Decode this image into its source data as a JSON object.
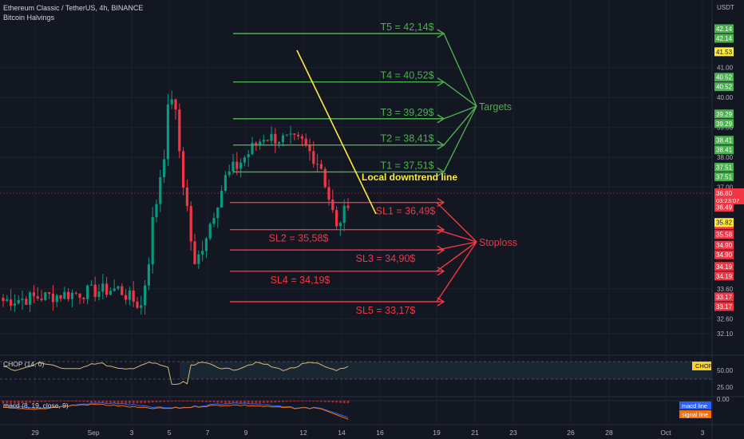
{
  "header": {
    "symbol_line": "Ethereum Classic / TetherUS, 4h, BINANCE",
    "indicator_line": "Bitcoin Halvings",
    "currency": "USDT"
  },
  "colors": {
    "background": "#131722",
    "bull": "#089981",
    "bear": "#f23645",
    "target_green": "#4caf50",
    "stop_red": "#f23645",
    "trendline_yellow": "#ffeb3b",
    "chop_line": "#d4b57a",
    "macd_line": "#2962ff",
    "signal_line": "#ff6d00"
  },
  "chart_data": {
    "type": "candlestick",
    "y_range": [
      31.9,
      44.0
    ],
    "price_ticks": [
      "41.00",
      "40.00",
      "39.00",
      "38.00",
      "37.00",
      "33.60",
      "32.60",
      "32.10"
    ],
    "x_ticks": [
      "29",
      "Sep",
      "3",
      "5",
      "7",
      "9",
      "12",
      "14",
      "16",
      "19",
      "21",
      "23",
      "26",
      "28",
      "Oct",
      "3"
    ],
    "current_price": "36.80",
    "countdown": "03:23:07",
    "marker_41_53": "41.53",
    "marker_35_82": "35.82",
    "targets": [
      {
        "label": "T1 = 37,51$",
        "price": 37.51,
        "tags": [
          "37.51",
          "37.51"
        ]
      },
      {
        "label": "T2 = 38,41$",
        "price": 38.41,
        "tags": [
          "38.41",
          "38.41"
        ]
      },
      {
        "label": "T3 = 39,29$",
        "price": 39.29,
        "tags": [
          "39.29",
          "39.29"
        ]
      },
      {
        "label": "T4 = 40,52$",
        "price": 40.52,
        "tags": [
          "40.52",
          "40.52"
        ]
      },
      {
        "label": "T5 = 42,14$",
        "price": 42.14,
        "tags": [
          "42.14",
          "42.14"
        ]
      }
    ],
    "stops": [
      {
        "label": "SL1 = 36,49$",
        "price": 36.49,
        "tags": [
          "36.49",
          "36.49"
        ]
      },
      {
        "label": "SL2 = 35,58$",
        "price": 35.58,
        "tags": [
          "35.58",
          "35.58"
        ]
      },
      {
        "label": "SL3 = 34,90$",
        "price": 34.9,
        "tags": [
          "34.90",
          "34.90"
        ]
      },
      {
        "label": "SL4 = 34,19$",
        "price": 34.19,
        "tags": [
          "34.19",
          "34.19"
        ]
      },
      {
        "label": "SL5 = 33,17$",
        "price": 33.17,
        "tags": [
          "33.17",
          "33.17"
        ]
      }
    ],
    "annotations": {
      "targets": "Targets",
      "stoploss": "Stoploss",
      "trendline": "Local downtrend line"
    },
    "indicators": {
      "chop_label": "CHOP (14, 0)",
      "chop_tag": "CHOP",
      "chop_ticks": [
        "50.00",
        "25.00"
      ],
      "macd_label": "macd (8, 19, close, 9)",
      "macd_tick": "0.00",
      "macd_tag": "macd line",
      "signal_tag": "signal line"
    }
  }
}
